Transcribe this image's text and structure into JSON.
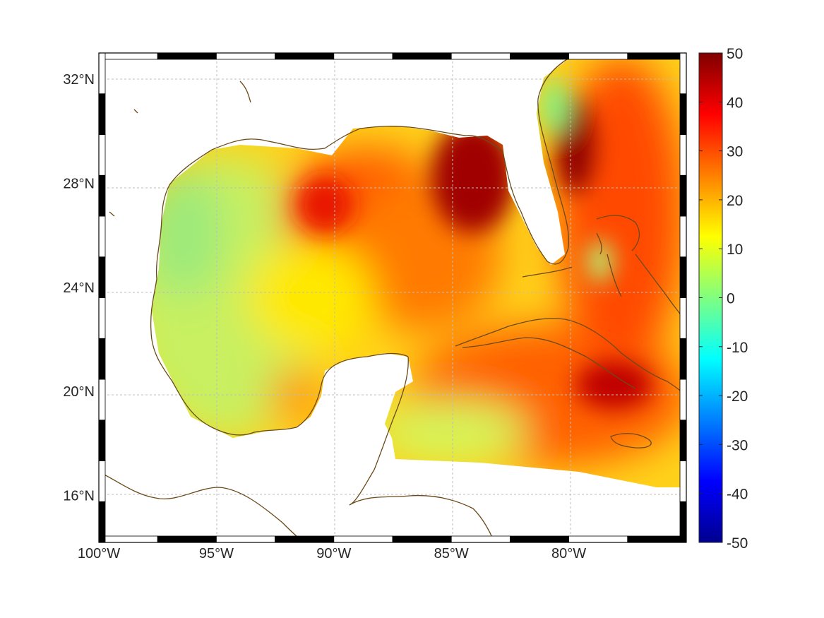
{
  "map": {
    "extent": {
      "lon_min": -100,
      "lon_max": -75,
      "lat_min": 14.2,
      "lat_max": 33
    },
    "grid": "on",
    "frame": "black-and-white checkered border",
    "coastline_color": "#6b4a1a",
    "land_color": "#ffffff",
    "colormap": "jet",
    "x_ticks": [
      {
        "lon": -100,
        "label": "100°W"
      },
      {
        "lon": -95,
        "label": "95°W"
      },
      {
        "lon": -90,
        "label": "90°W"
      },
      {
        "lon": -85,
        "label": "85°W"
      },
      {
        "lon": -80,
        "label": "80°W"
      }
    ],
    "y_ticks": [
      {
        "lat": 32,
        "label": "32°N"
      },
      {
        "lat": 28,
        "label": "28°N"
      },
      {
        "lat": 24,
        "label": "24°N"
      },
      {
        "lat": 20,
        "label": "20°N"
      },
      {
        "lat": 16,
        "label": "16°N"
      }
    ]
  },
  "colorbar": {
    "min": -50,
    "max": 50,
    "labels": [
      "50",
      "40",
      "30",
      "20",
      "10",
      "0",
      "-10",
      "-20",
      "-30",
      "-40",
      "-50"
    ],
    "colors": [
      "#00008f",
      "#0000ff",
      "#0080ff",
      "#00ffff",
      "#80ff80",
      "#ffff00",
      "#ff8000",
      "#ff0000",
      "#800000"
    ]
  },
  "field_regions": [
    {
      "name": "western-gulf",
      "value": 8
    },
    {
      "name": "central-gulf",
      "value": 33
    },
    {
      "name": "northeast-gulf",
      "value": 46
    },
    {
      "name": "florida-current",
      "value": 45
    },
    {
      "name": "caribbean",
      "value": 30
    },
    {
      "name": "south-cuba",
      "value": 42
    },
    {
      "name": "western-caribbean",
      "value": 10
    },
    {
      "name": "bay-of-campeche-east",
      "value": 24
    },
    {
      "name": "north-atlantic-coast",
      "value": 5
    }
  ]
}
